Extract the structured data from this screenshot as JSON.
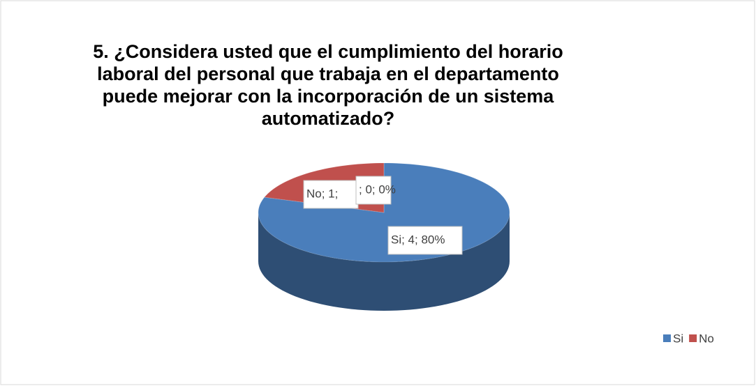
{
  "chart_data": {
    "type": "pie3d",
    "title": "5. ¿Considera usted que el cumplimiento del horario laboral del personal que trabaja en el departamento puede mejorar con la incorporación de un sistema automatizado?",
    "categories": [
      "Si",
      "No",
      null
    ],
    "values": [
      4,
      1,
      0
    ],
    "value_labels": [
      "Si; 4; 80%",
      "No; 1;",
      "; 0; 0%"
    ],
    "colors": [
      "#4a7ebb",
      "#c0504d",
      "#9bbb59"
    ],
    "legend": "bottom-right"
  }
}
